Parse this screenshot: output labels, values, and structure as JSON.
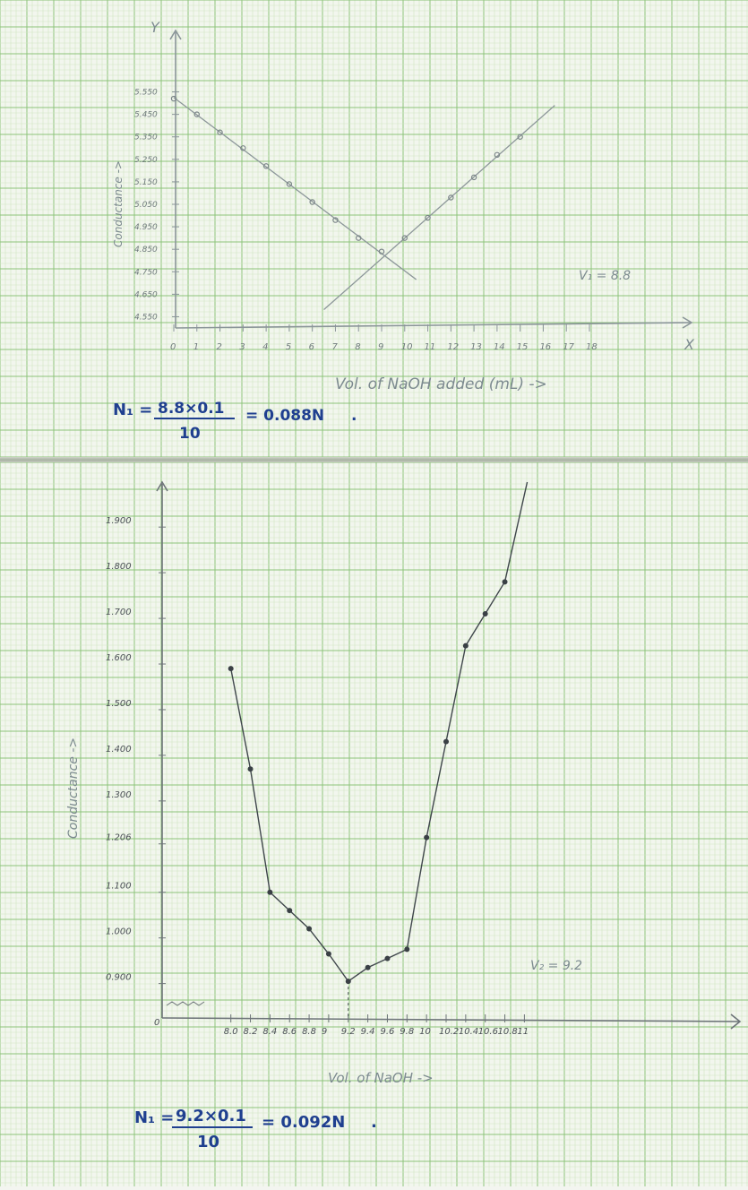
{
  "chart_data": [
    {
      "type": "line",
      "xlabel": "Vol. of NaOH added (mL) ->",
      "ylabel": "Conductance ->",
      "axis_letters": {
        "x": "X",
        "y": "Y"
      },
      "x_ticks": [
        "0",
        "1",
        "2",
        "3",
        "4",
        "5",
        "6",
        "7",
        "8",
        "9",
        "10",
        "11",
        "12",
        "13",
        "14",
        "15",
        "16",
        "17",
        "18"
      ],
      "y_ticks": [
        "5.550",
        "5.450",
        "5.350",
        "5.250",
        "5.150",
        "5.050",
        "4.950",
        "4.850",
        "4.750",
        "4.650",
        "4.550"
      ],
      "xlim": [
        0,
        18
      ],
      "ylim": [
        4.5,
        5.6
      ],
      "series": [
        {
          "x": [
            0,
            1,
            2,
            3,
            4,
            5,
            6,
            7,
            8,
            9
          ],
          "y": [
            5.52,
            5.45,
            5.37,
            5.3,
            5.22,
            5.14,
            5.06,
            4.98,
            4.9,
            4.84
          ]
        },
        {
          "x": [
            10,
            11,
            12,
            13,
            14,
            15
          ],
          "y": [
            4.9,
            4.99,
            5.08,
            5.17,
            5.27,
            5.35
          ]
        }
      ],
      "annotation": "V₁ = 8.8",
      "equation": {
        "lhs": "N₁ =",
        "numerator": "8.8×0.1",
        "denominator": "10",
        "result": "= 0.088N",
        "end": "."
      }
    },
    {
      "type": "line",
      "xlabel": "Vol. of NaOH ->",
      "ylabel": "Conductance ->",
      "origin_label": "0",
      "x_ticks": [
        "8.0",
        "8.2",
        "8.4",
        "8.6",
        "8.8",
        "9",
        "9.2",
        "9.4",
        "9.6",
        "9.8",
        "10",
        "10.2",
        "10.4",
        "10.6",
        "10.8",
        "11"
      ],
      "y_ticks": [
        "1.900",
        "1.800",
        "1.700",
        "1.600",
        "1.500",
        "1.400",
        "1.300",
        "1.206",
        "1.100",
        "1.000",
        "0.900"
      ],
      "xlim": [
        7.6,
        11.5
      ],
      "ylim": [
        0.86,
        1.92
      ],
      "series": [
        {
          "x": [
            8.0,
            8.2,
            8.4,
            8.6,
            8.8,
            9.0,
            9.2,
            9.4,
            9.6,
            9.8,
            10.0,
            10.2,
            10.4,
            10.6,
            10.8
          ],
          "y": [
            1.59,
            1.37,
            1.1,
            1.06,
            1.02,
            0.965,
            0.905,
            0.935,
            0.955,
            0.975,
            1.22,
            1.43,
            1.64,
            1.71,
            1.78
          ]
        }
      ],
      "equivalence_x": 9.2,
      "annotation": "V₂ = 9.2",
      "equation": {
        "lhs": "N₁ =",
        "numerator": "9.2×0.1",
        "denominator": "10",
        "result": "= 0.092N",
        "end": "."
      }
    }
  ]
}
